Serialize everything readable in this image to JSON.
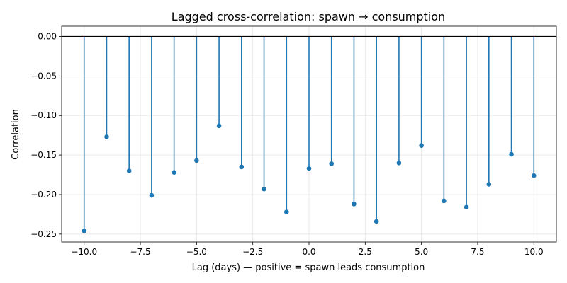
{
  "chart_data": {
    "type": "stem",
    "title": "Lagged cross-correlation: spawn → consumption",
    "xlabel": "Lag (days) — positive = spawn leads consumption",
    "ylabel": "Correlation",
    "xlim": [
      -11,
      11
    ],
    "ylim": [
      -0.26,
      0.013
    ],
    "xticks": [
      -10.0,
      -7.5,
      -5.0,
      -2.5,
      0.0,
      2.5,
      5.0,
      7.5,
      10.0
    ],
    "xtick_labels": [
      "−10.0",
      "−7.5",
      "−5.0",
      "−2.5",
      "0.0",
      "2.5",
      "5.0",
      "7.5",
      "10.0"
    ],
    "yticks": [
      0.0,
      -0.05,
      -0.1,
      -0.15,
      -0.2,
      -0.25
    ],
    "ytick_labels": [
      "0.00",
      "−0.05",
      "−0.10",
      "−0.15",
      "−0.20",
      "−0.25"
    ],
    "grid": true,
    "baseline": 0.0,
    "color": "#1f77b4",
    "x": [
      -10,
      -9,
      -8,
      -7,
      -6,
      -5,
      -4,
      -3,
      -2,
      -1,
      0,
      1,
      2,
      3,
      4,
      5,
      6,
      7,
      8,
      9,
      10
    ],
    "y": [
      -0.246,
      -0.127,
      -0.17,
      -0.201,
      -0.172,
      -0.157,
      -0.113,
      -0.165,
      -0.193,
      -0.222,
      -0.167,
      -0.161,
      -0.212,
      -0.234,
      -0.16,
      -0.138,
      -0.208,
      -0.216,
      -0.187,
      -0.149,
      -0.176
    ]
  }
}
